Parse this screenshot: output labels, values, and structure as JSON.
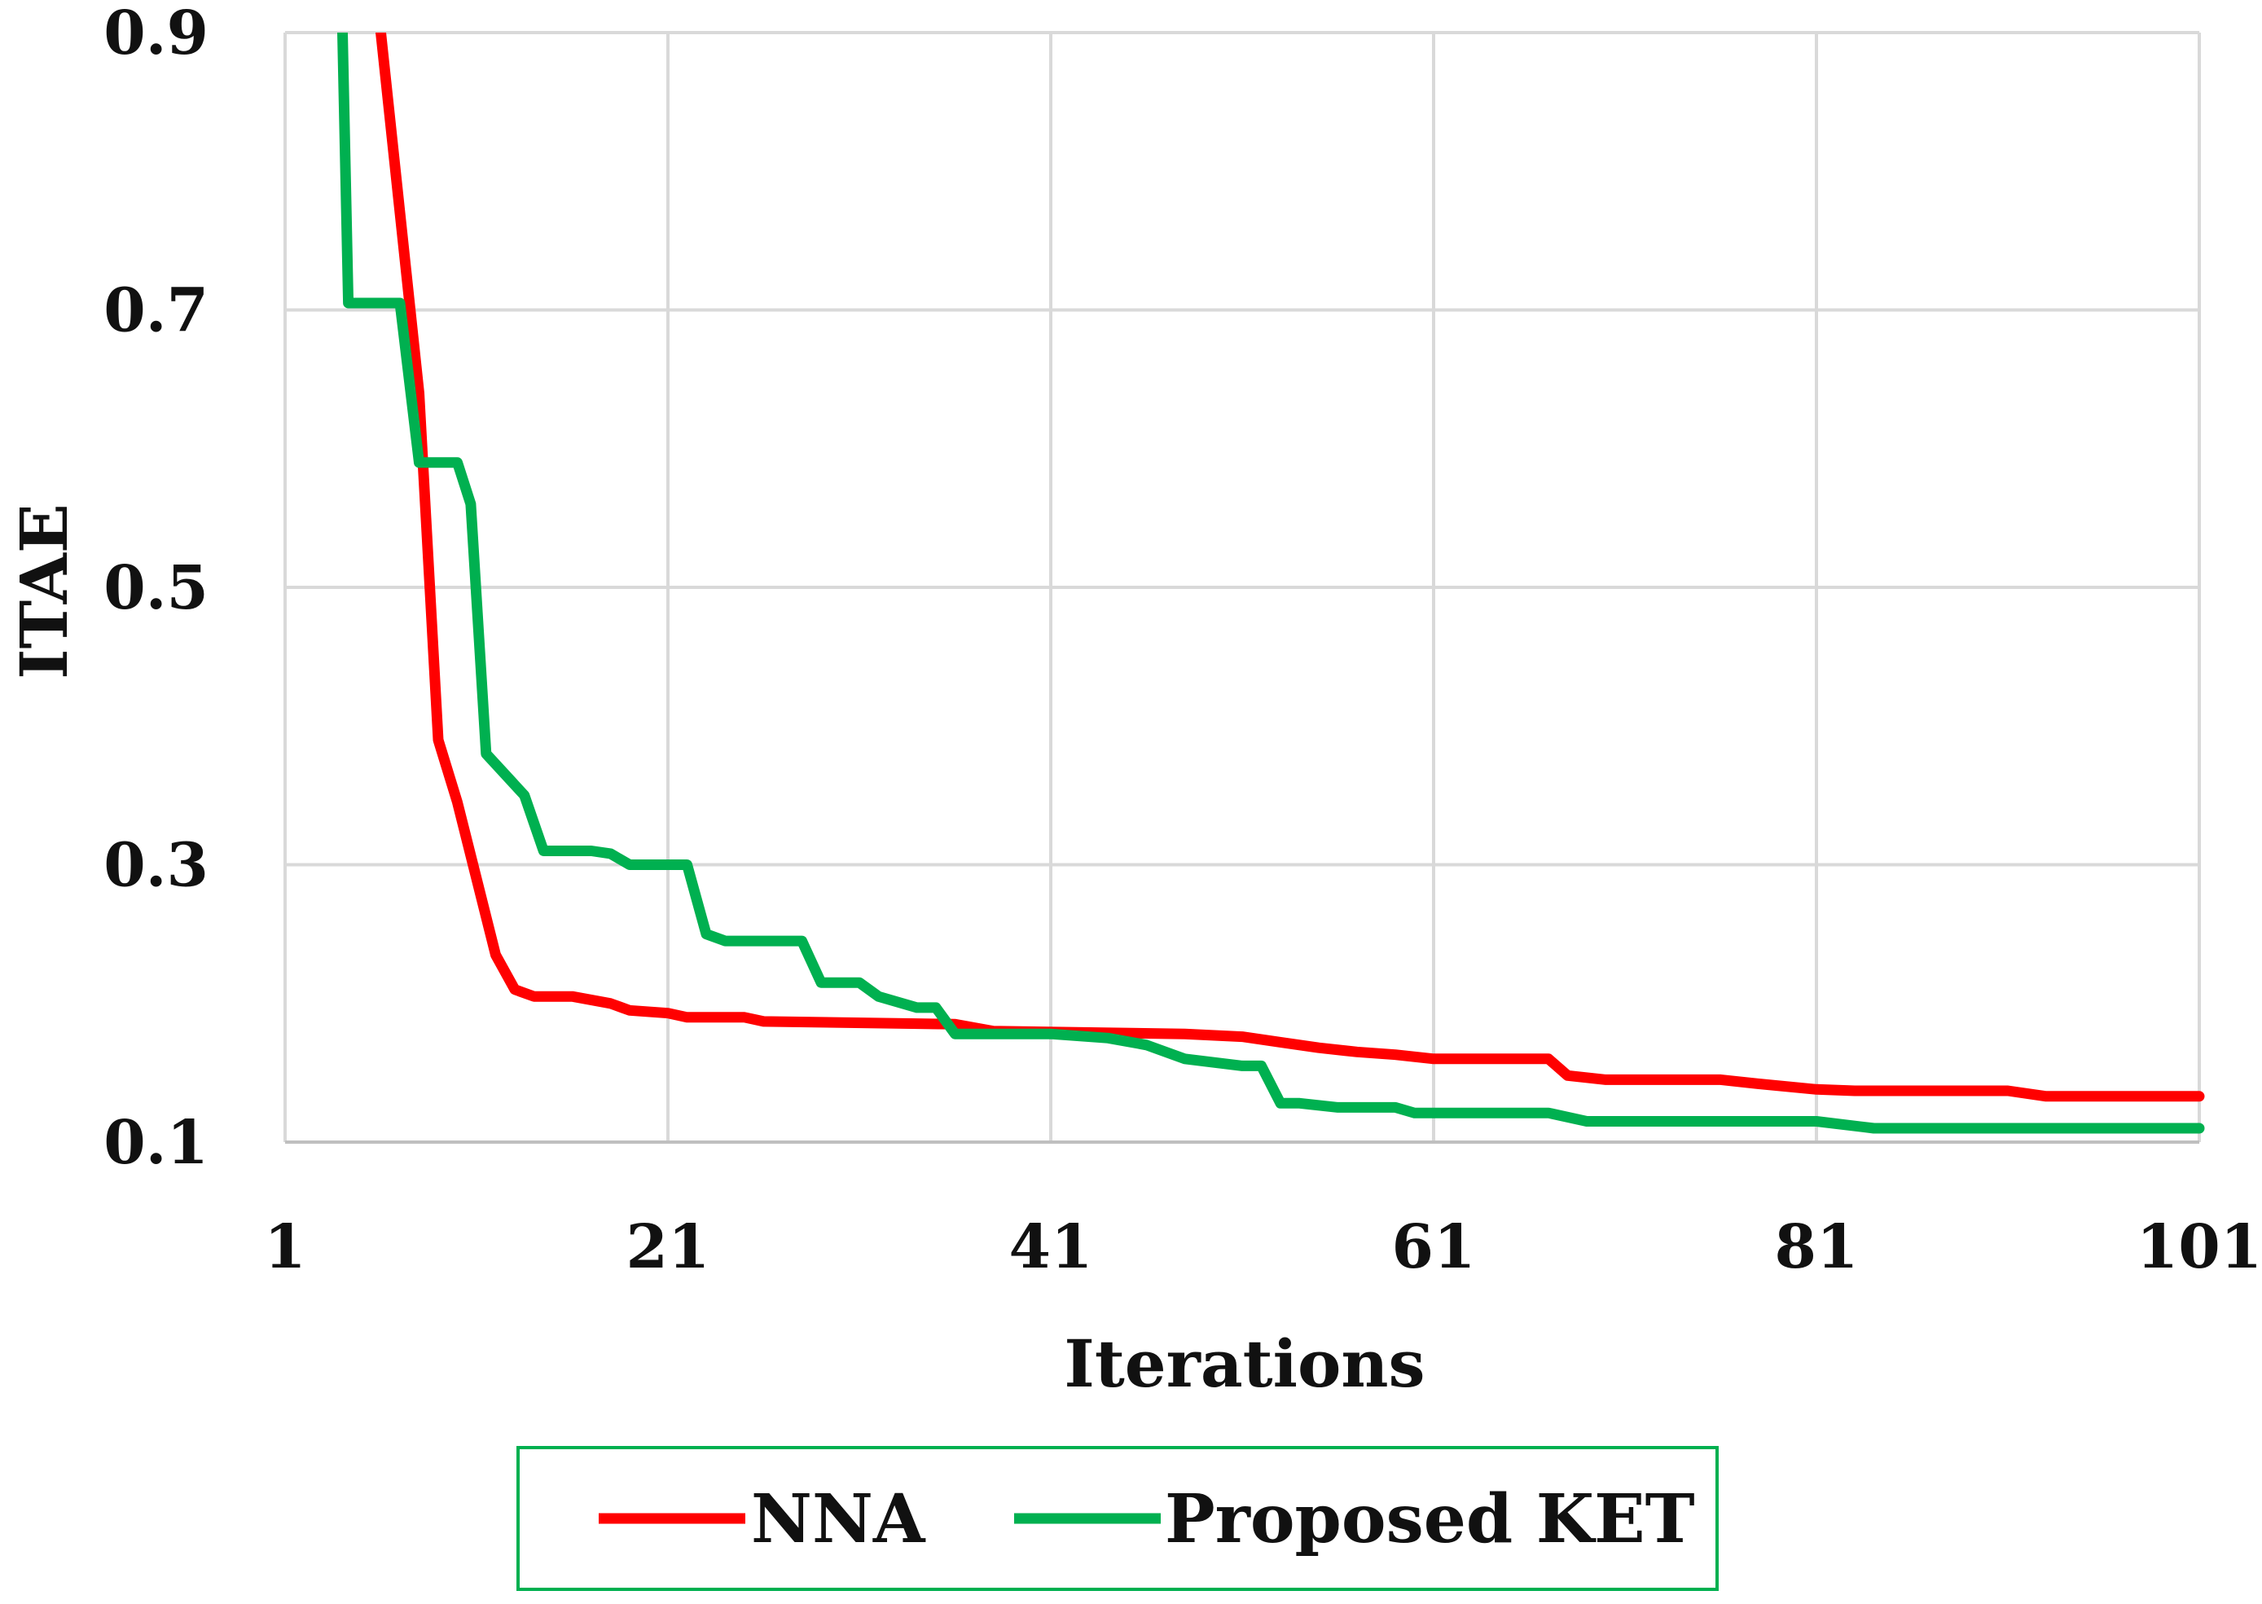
{
  "chart_data": {
    "type": "line",
    "title": "",
    "xlabel": "Iterations",
    "ylabel": "ITAE",
    "xlim": [
      1,
      101
    ],
    "ylim": [
      0.1,
      0.9
    ],
    "xticks": [
      "1",
      "21",
      "41",
      "61",
      "81",
      "101"
    ],
    "yticks": [
      "0.1",
      "0.3",
      "0.5",
      "0.7",
      "0.9"
    ],
    "grid": true,
    "legend_position": "bottom",
    "series": [
      {
        "name": "NNA",
        "color": "#ff0000",
        "points": [
          [
            6,
            0.9
          ],
          [
            7,
            0.77
          ],
          [
            8,
            0.64
          ],
          [
            9,
            0.39
          ],
          [
            10,
            0.345
          ],
          [
            11,
            0.29
          ],
          [
            12,
            0.235
          ],
          [
            13,
            0.21
          ],
          [
            14,
            0.205
          ],
          [
            16,
            0.205
          ],
          [
            18,
            0.2
          ],
          [
            19,
            0.195
          ],
          [
            21,
            0.193
          ],
          [
            22,
            0.19
          ],
          [
            25,
            0.19
          ],
          [
            26,
            0.187
          ],
          [
            36,
            0.185
          ],
          [
            38,
            0.18
          ],
          [
            48,
            0.178
          ],
          [
            51,
            0.176
          ],
          [
            53,
            0.172
          ],
          [
            55,
            0.168
          ],
          [
            57,
            0.165
          ],
          [
            59,
            0.163
          ],
          [
            61,
            0.16
          ],
          [
            63,
            0.16
          ],
          [
            67,
            0.16
          ],
          [
            68,
            0.148
          ],
          [
            70,
            0.145
          ],
          [
            76,
            0.145
          ],
          [
            78,
            0.142
          ],
          [
            81,
            0.138
          ],
          [
            83,
            0.137
          ],
          [
            91,
            0.137
          ],
          [
            93,
            0.133
          ],
          [
            101,
            0.133
          ]
        ]
      },
      {
        "name": "Proposed KET",
        "color": "#00b050",
        "points": [
          [
            4,
            0.9
          ],
          [
            4.3,
            0.705
          ],
          [
            7,
            0.705
          ],
          [
            8,
            0.59
          ],
          [
            10,
            0.59
          ],
          [
            10.7,
            0.56
          ],
          [
            11.5,
            0.38
          ],
          [
            12.5,
            0.365
          ],
          [
            13.5,
            0.35
          ],
          [
            14.5,
            0.31
          ],
          [
            17,
            0.31
          ],
          [
            18,
            0.308
          ],
          [
            19,
            0.3
          ],
          [
            21,
            0.3
          ],
          [
            22,
            0.3
          ],
          [
            23,
            0.25
          ],
          [
            24,
            0.245
          ],
          [
            27,
            0.245
          ],
          [
            28,
            0.245
          ],
          [
            29,
            0.215
          ],
          [
            31,
            0.215
          ],
          [
            32,
            0.205
          ],
          [
            34,
            0.197
          ],
          [
            35,
            0.197
          ],
          [
            36,
            0.178
          ],
          [
            41,
            0.178
          ],
          [
            44,
            0.175
          ],
          [
            46,
            0.17
          ],
          [
            48,
            0.16
          ],
          [
            51,
            0.155
          ],
          [
            52,
            0.155
          ],
          [
            53,
            0.128
          ],
          [
            54,
            0.128
          ],
          [
            56,
            0.125
          ],
          [
            59,
            0.125
          ],
          [
            60,
            0.121
          ],
          [
            67,
            0.121
          ],
          [
            69,
            0.115
          ],
          [
            81,
            0.115
          ],
          [
            84,
            0.11
          ],
          [
            101,
            0.11
          ]
        ]
      }
    ]
  }
}
